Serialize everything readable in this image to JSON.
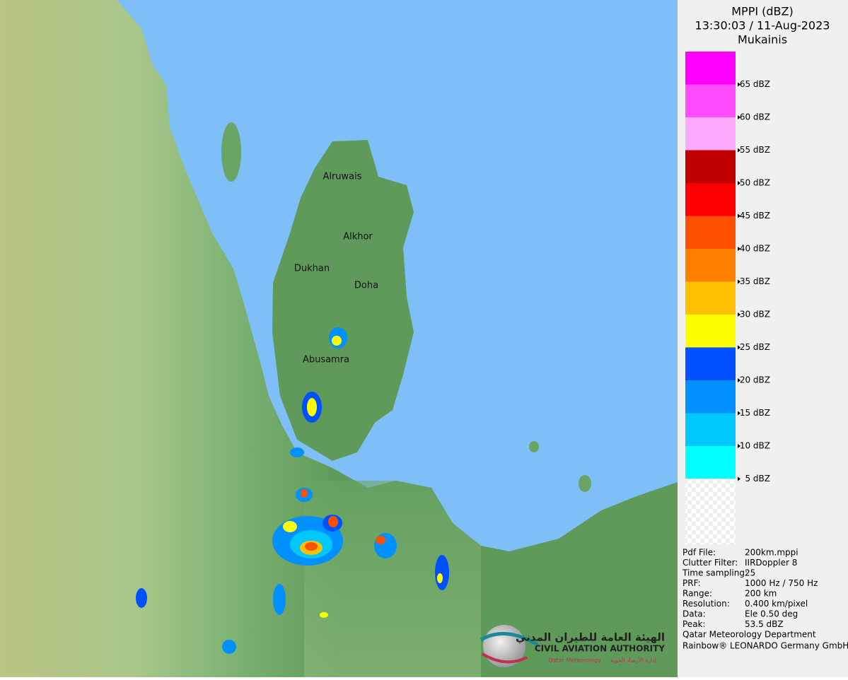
{
  "panel": {
    "title": "MPPI (dBZ)",
    "time": "13:30:03 / 11-Aug-2023",
    "site": "Mukainis",
    "legend": [
      {
        "color": "#ff00ff",
        "label": "65 dBZ"
      },
      {
        "color": "#ff4cff",
        "label": "60 dBZ"
      },
      {
        "color": "#ffaaff",
        "label": "55 dBZ"
      },
      {
        "color": "#c00000",
        "label": "50 dBZ"
      },
      {
        "color": "#ff0000",
        "label": "45 dBZ"
      },
      {
        "color": "#ff5000",
        "label": "40 dBZ"
      },
      {
        "color": "#ff8000",
        "label": "35 dBZ"
      },
      {
        "color": "#ffc000",
        "label": "30 dBZ"
      },
      {
        "color": "#ffff00",
        "label": "25 dBZ"
      },
      {
        "color": "#0050ff",
        "label": "20 dBZ"
      },
      {
        "color": "#0090ff",
        "label": "15 dBZ"
      },
      {
        "color": "#00c8ff",
        "label": "10 dBZ"
      },
      {
        "color": "#00ffff",
        "label": "5 dBZ"
      }
    ],
    "info": [
      {
        "key": "Pdf File:",
        "value": "200km.mppi"
      },
      {
        "key": "Clutter Filter:",
        "value": "IIRDoppler 8"
      },
      {
        "key": "Time sampling:",
        "value": "25"
      },
      {
        "key": "PRF:",
        "value": "1000 Hz / 750 Hz"
      },
      {
        "key": "Range:",
        "value": "200 km"
      },
      {
        "key": "Resolution:",
        "value": "0.400 km/pixel"
      },
      {
        "key": "Data:",
        "value": "Ele 0.50 deg"
      },
      {
        "key": "Peak:",
        "value": "53.5 dBZ"
      }
    ],
    "credits": [
      "Qatar Meteorology Department",
      "Rainbow® LEONARDO Germany GmbH"
    ]
  },
  "map": {
    "labels": [
      "Alruwais",
      "Alkhor",
      "Dukhan",
      "Doha",
      "Abusamra"
    ]
  },
  "logo": {
    "arabic": "الهيئة العامة للطيران المدني",
    "english": "CIVIL AVIATION AUTHORITY",
    "sub_en": "Qatar Meteorology",
    "sub_ar": "إدارة الأرصاد الجوية"
  }
}
